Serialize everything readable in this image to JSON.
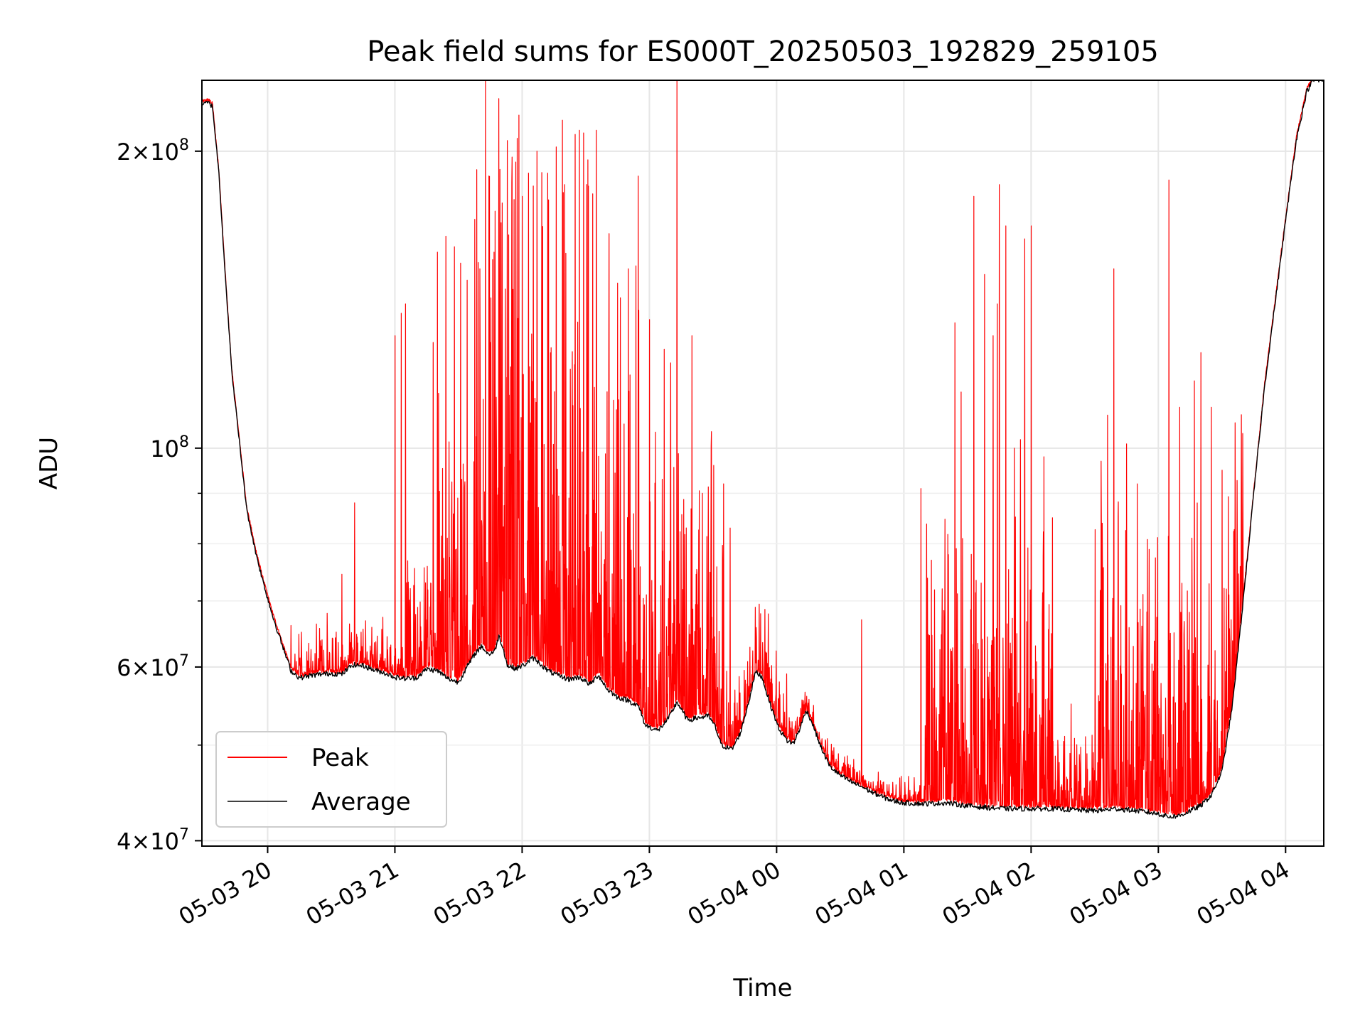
{
  "chart_data": {
    "type": "line",
    "title": "Peak field sums for ES000T_20250503_192829_259105",
    "xlabel": "Time",
    "ylabel": "ADU",
    "yscale": "log",
    "ylim": [
      39500000,
      236000000
    ],
    "xlim": [
      "2025-05-03 19:29",
      "2025-05-04 04:18"
    ],
    "grid": true,
    "legend_position": "lower-left",
    "x_ticks": [
      {
        "t": "2025-05-03 20:00",
        "label": "05-03 20"
      },
      {
        "t": "2025-05-03 21:00",
        "label": "05-03 21"
      },
      {
        "t": "2025-05-03 22:00",
        "label": "05-03 22"
      },
      {
        "t": "2025-05-03 23:00",
        "label": "05-03 23"
      },
      {
        "t": "2025-05-04 00:00",
        "label": "05-04 00"
      },
      {
        "t": "2025-05-04 01:00",
        "label": "05-04 01"
      },
      {
        "t": "2025-05-04 02:00",
        "label": "05-04 02"
      },
      {
        "t": "2025-05-04 03:00",
        "label": "05-04 03"
      },
      {
        "t": "2025-05-04 04:00",
        "label": "05-04 04"
      }
    ],
    "y_ticks": [
      {
        "v": 40000000,
        "base": "4",
        "sup": "7"
      },
      {
        "v": 60000000,
        "base": "6",
        "sup": "7"
      },
      {
        "v": 100000000,
        "base": "",
        "sup": "8"
      },
      {
        "v": 200000000,
        "base": "2",
        "sup": "8"
      }
    ],
    "y_minor_ticks": [
      50000000,
      70000000,
      80000000,
      90000000
    ],
    "series": [
      {
        "name": "Average",
        "color": "#000000",
        "points": [
          [
            "2025-05-03 19:29",
            223000000
          ],
          [
            "2025-05-03 19:32",
            224000000
          ],
          [
            "2025-05-03 19:34",
            222000000
          ],
          [
            "2025-05-03 19:37",
            190000000
          ],
          [
            "2025-05-03 19:40",
            150000000
          ],
          [
            "2025-05-03 19:43",
            120000000
          ],
          [
            "2025-05-03 19:47",
            100000000
          ],
          [
            "2025-05-03 19:50",
            87000000
          ],
          [
            "2025-05-03 19:54",
            79000000
          ],
          [
            "2025-05-03 19:58",
            73000000
          ],
          [
            "2025-05-03 20:02",
            68000000
          ],
          [
            "2025-05-03 20:07",
            63000000
          ],
          [
            "2025-05-03 20:11",
            59500000
          ],
          [
            "2025-05-03 20:15",
            58500000
          ],
          [
            "2025-05-03 20:20",
            58800000
          ],
          [
            "2025-05-03 20:25",
            59000000
          ],
          [
            "2025-05-03 20:30",
            59100000
          ],
          [
            "2025-05-03 20:35",
            59000000
          ],
          [
            "2025-05-03 20:40",
            60300000
          ],
          [
            "2025-05-03 20:45",
            60200000
          ],
          [
            "2025-05-03 20:50",
            59600000
          ],
          [
            "2025-05-03 20:55",
            59200000
          ],
          [
            "2025-05-03 21:00",
            58600000
          ],
          [
            "2025-05-03 21:05",
            58400000
          ],
          [
            "2025-05-03 21:10",
            58500000
          ],
          [
            "2025-05-03 21:15",
            59700000
          ],
          [
            "2025-05-03 21:20",
            59500000
          ],
          [
            "2025-05-03 21:25",
            58400000
          ],
          [
            "2025-05-03 21:30",
            57900000
          ],
          [
            "2025-05-03 21:34",
            60000000
          ],
          [
            "2025-05-03 21:38",
            62000000
          ],
          [
            "2025-05-03 21:41",
            63000000
          ],
          [
            "2025-05-03 21:44",
            61800000
          ],
          [
            "2025-05-03 21:47",
            62200000
          ],
          [
            "2025-05-03 21:49",
            64500000
          ],
          [
            "2025-05-03 21:51",
            62800000
          ],
          [
            "2025-05-03 21:53",
            60200000
          ],
          [
            "2025-05-03 21:57",
            59800000
          ],
          [
            "2025-05-03 22:01",
            60300000
          ],
          [
            "2025-05-03 22:05",
            61300000
          ],
          [
            "2025-05-03 22:08",
            60600000
          ],
          [
            "2025-05-03 22:12",
            59500000
          ],
          [
            "2025-05-03 22:17",
            58800000
          ],
          [
            "2025-05-03 22:22",
            58300000
          ],
          [
            "2025-05-03 22:27",
            58600000
          ],
          [
            "2025-05-03 22:32",
            57600000
          ],
          [
            "2025-05-03 22:36",
            58900000
          ],
          [
            "2025-05-03 22:40",
            57000000
          ],
          [
            "2025-05-03 22:45",
            55900000
          ],
          [
            "2025-05-03 22:50",
            55500000
          ],
          [
            "2025-05-03 22:55",
            54700000
          ],
          [
            "2025-05-03 22:58",
            52400000
          ],
          [
            "2025-05-03 23:04",
            51700000
          ],
          [
            "2025-05-03 23:09",
            53200000
          ],
          [
            "2025-05-03 23:13",
            55300000
          ],
          [
            "2025-05-03 23:18",
            53000000
          ],
          [
            "2025-05-03 23:23",
            53300000
          ],
          [
            "2025-05-03 23:28",
            53500000
          ],
          [
            "2025-05-03 23:31",
            52200000
          ],
          [
            "2025-05-03 23:34",
            50000000
          ],
          [
            "2025-05-03 23:39",
            49500000
          ],
          [
            "2025-05-03 23:43",
            51500000
          ],
          [
            "2025-05-03 23:47",
            55500000
          ],
          [
            "2025-05-03 23:50",
            59300000
          ],
          [
            "2025-05-03 23:53",
            58700000
          ],
          [
            "2025-05-03 23:57",
            55000000
          ],
          [
            "2025-05-04 00:01",
            52000000
          ],
          [
            "2025-05-04 00:05",
            50500000
          ],
          [
            "2025-05-04 00:08",
            50200000
          ],
          [
            "2025-05-04 00:11",
            52000000
          ],
          [
            "2025-05-04 00:14",
            54300000
          ],
          [
            "2025-05-04 00:17",
            52500000
          ],
          [
            "2025-05-04 00:21",
            49700000
          ],
          [
            "2025-05-04 00:25",
            47600000
          ],
          [
            "2025-05-04 00:30",
            46600000
          ],
          [
            "2025-05-04 00:35",
            45900000
          ],
          [
            "2025-05-04 00:40",
            45400000
          ],
          [
            "2025-05-04 00:45",
            44800000
          ],
          [
            "2025-05-04 00:50",
            44300000
          ],
          [
            "2025-05-04 00:55",
            43900000
          ],
          [
            "2025-05-04 01:00",
            43700000
          ],
          [
            "2025-05-04 01:10",
            43600000
          ],
          [
            "2025-05-04 01:20",
            43700000
          ],
          [
            "2025-05-04 01:30",
            43400000
          ],
          [
            "2025-05-04 01:40",
            43200000
          ],
          [
            "2025-05-04 01:50",
            43100000
          ],
          [
            "2025-05-04 02:00",
            43100000
          ],
          [
            "2025-05-04 02:10",
            43100000
          ],
          [
            "2025-05-04 02:20",
            43000000
          ],
          [
            "2025-05-04 02:30",
            42900000
          ],
          [
            "2025-05-04 02:40",
            43100000
          ],
          [
            "2025-05-04 02:50",
            42900000
          ],
          [
            "2025-05-04 03:00",
            42600000
          ],
          [
            "2025-05-04 03:05",
            42300000
          ],
          [
            "2025-05-04 03:10",
            42400000
          ],
          [
            "2025-05-04 03:15",
            42900000
          ],
          [
            "2025-05-04 03:20",
            43400000
          ],
          [
            "2025-05-04 03:25",
            44500000
          ],
          [
            "2025-05-04 03:30",
            47000000
          ],
          [
            "2025-05-04 03:35",
            55000000
          ],
          [
            "2025-05-04 03:40",
            70000000
          ],
          [
            "2025-05-04 03:45",
            90000000
          ],
          [
            "2025-05-04 03:50",
            115000000
          ],
          [
            "2025-05-04 03:55",
            140000000
          ],
          [
            "2025-05-04 04:00",
            170000000
          ],
          [
            "2025-05-04 04:05",
            205000000
          ],
          [
            "2025-05-04 04:10",
            230000000
          ],
          [
            "2025-05-04 04:13",
            236000000
          ],
          [
            "2025-05-04 04:18",
            236000000
          ]
        ]
      },
      {
        "name": "Peak",
        "color": "#ff0000",
        "activity": [
          {
            "start": "2025-05-03 20:11",
            "end": "2025-05-03 21:05",
            "level": 0.1
          },
          {
            "start": "2025-05-03 21:05",
            "end": "2025-05-03 21:20",
            "level": 0.25
          },
          {
            "start": "2025-05-03 21:20",
            "end": "2025-05-03 21:35",
            "level": 0.55
          },
          {
            "start": "2025-05-03 21:35",
            "end": "2025-05-03 22:55",
            "level": 1.1
          },
          {
            "start": "2025-05-03 22:55",
            "end": "2025-05-03 23:35",
            "level": 0.6
          },
          {
            "start": "2025-05-03 23:35",
            "end": "2025-05-04 00:05",
            "level": 0.15
          },
          {
            "start": "2025-05-04 00:05",
            "end": "2025-05-04 01:10",
            "level": 0.05
          },
          {
            "start": "2025-05-04 01:10",
            "end": "2025-05-04 02:10",
            "level": 0.55
          },
          {
            "start": "2025-05-04 02:10",
            "end": "2025-05-04 02:30",
            "level": 0.2
          },
          {
            "start": "2025-05-04 02:30",
            "end": "2025-05-04 03:40",
            "level": 0.6
          }
        ],
        "spikes": [
          [
            "2025-05-03 20:25",
            62000000
          ],
          [
            "2025-05-03 20:28",
            68000000
          ],
          [
            "2025-05-03 20:35",
            74500000
          ],
          [
            "2025-05-03 20:41",
            88000000
          ],
          [
            "2025-05-03 20:58",
            62000000
          ],
          [
            "2025-05-03 21:00",
            130000000
          ],
          [
            "2025-05-03 21:03",
            137000000
          ],
          [
            "2025-05-03 21:05",
            140000000
          ],
          [
            "2025-05-03 21:18",
            128000000
          ],
          [
            "2025-05-03 21:20",
            158000000
          ],
          [
            "2025-05-03 21:24",
            164000000
          ],
          [
            "2025-05-03 21:28",
            160000000
          ],
          [
            "2025-05-03 21:31",
            154000000
          ],
          [
            "2025-05-03 21:34",
            148000000
          ],
          [
            "2025-05-03 21:40",
            152000000
          ],
          [
            "2025-05-03 21:45",
            128000000
          ],
          [
            "2025-05-03 21:52",
            145000000
          ],
          [
            "2025-05-03 21:53",
            205000000
          ],
          [
            "2025-05-03 21:57",
            195000000
          ],
          [
            "2025-05-03 22:00",
            180000000
          ],
          [
            "2025-05-03 22:03",
            190000000
          ],
          [
            "2025-05-03 22:07",
            200000000
          ],
          [
            "2025-05-03 22:12",
            190000000
          ],
          [
            "2025-05-03 22:16",
            202000000
          ],
          [
            "2025-05-03 22:20",
            185000000
          ],
          [
            "2025-05-03 22:25",
            208000000
          ],
          [
            "2025-05-03 22:27",
            210000000
          ],
          [
            "2025-05-03 22:31",
            196000000
          ],
          [
            "2025-05-03 22:35",
            210000000
          ],
          [
            "2025-05-03 22:41",
            165000000
          ],
          [
            "2025-05-03 22:45",
            147000000
          ],
          [
            "2025-05-03 22:50",
            152000000
          ],
          [
            "2025-05-03 22:55",
            138000000
          ],
          [
            "2025-05-03 23:00",
            135000000
          ],
          [
            "2025-05-03 23:07",
            126000000
          ],
          [
            "2025-05-03 23:10",
            122000000
          ],
          [
            "2025-05-03 23:13",
            236000000
          ],
          [
            "2025-05-03 23:20",
            130000000
          ],
          [
            "2025-05-03 23:25",
            90000000
          ],
          [
            "2025-05-03 23:29",
            78000000
          ],
          [
            "2025-05-03 23:35",
            92000000
          ],
          [
            "2025-05-03 23:38",
            83000000
          ],
          [
            "2025-05-04 00:40",
            67000000
          ],
          [
            "2025-05-04 01:08",
            91000000
          ],
          [
            "2025-05-04 01:13",
            77000000
          ],
          [
            "2025-05-04 01:18",
            72000000
          ],
          [
            "2025-05-04 01:21",
            78000000
          ],
          [
            "2025-05-04 01:24",
            134000000
          ],
          [
            "2025-05-04 01:27",
            114000000
          ],
          [
            "2025-05-04 01:33",
            180000000
          ],
          [
            "2025-05-04 01:38",
            150000000
          ],
          [
            "2025-05-04 01:42",
            130000000
          ],
          [
            "2025-05-04 01:44",
            140000000
          ],
          [
            "2025-05-04 01:45",
            185000000
          ],
          [
            "2025-05-04 01:48",
            168000000
          ],
          [
            "2025-05-04 01:52",
            100000000
          ],
          [
            "2025-05-04 01:55",
            102000000
          ],
          [
            "2025-05-04 01:57",
            163000000
          ],
          [
            "2025-05-04 02:00",
            168000000
          ],
          [
            "2025-05-04 02:06",
            98000000
          ],
          [
            "2025-05-04 02:10",
            85000000
          ],
          [
            "2025-05-04 02:33",
            97000000
          ],
          [
            "2025-05-04 02:36",
            108000000
          ],
          [
            "2025-05-04 02:39",
            152000000
          ],
          [
            "2025-05-04 02:45",
            101000000
          ],
          [
            "2025-05-04 02:50",
            92000000
          ],
          [
            "2025-05-04 03:05",
            187000000
          ],
          [
            "2025-05-04 03:10",
            110000000
          ],
          [
            "2025-05-04 03:17",
            117000000
          ],
          [
            "2025-05-04 03:20",
            125000000
          ],
          [
            "2025-05-04 03:25",
            110000000
          ],
          [
            "2025-05-04 03:30",
            95000000
          ]
        ]
      }
    ]
  }
}
